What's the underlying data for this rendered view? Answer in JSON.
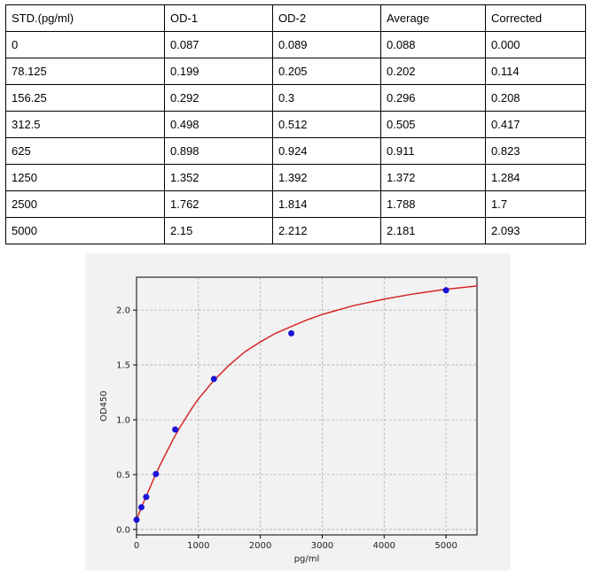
{
  "table": {
    "headers": [
      "STD.(pg/ml)",
      "OD-1",
      "OD-2",
      "Average",
      "Corrected"
    ],
    "rows": [
      [
        "0",
        "0.087",
        "0.089",
        "0.088",
        "0.000"
      ],
      [
        "78.125",
        "0.199",
        "0.205",
        "0.202",
        "0.114"
      ],
      [
        "156.25",
        "0.292",
        "0.3",
        "0.296",
        "0.208"
      ],
      [
        "312.5",
        "0.498",
        "0.512",
        "0.505",
        "0.417"
      ],
      [
        "625",
        "0.898",
        "0.924",
        "0.911",
        "0.823"
      ],
      [
        "1250",
        "1.352",
        "1.392",
        "1.372",
        "1.284"
      ],
      [
        "2500",
        "1.762",
        "1.814",
        "1.788",
        "1.7"
      ],
      [
        "5000",
        "2.15",
        "2.212",
        "2.181",
        "2.093"
      ]
    ]
  },
  "chart_data": {
    "type": "scatter",
    "title": "",
    "xlabel": "pg/ml",
    "ylabel": "OD450",
    "xlim": [
      0,
      5500
    ],
    "ylim": [
      -0.05,
      2.3
    ],
    "x_ticks": [
      0,
      1000,
      2000,
      3000,
      4000,
      5000
    ],
    "y_ticks": [
      0.0,
      0.5,
      1.0,
      1.5,
      2.0
    ],
    "x_tick_labels": [
      "0",
      "1000",
      "2000",
      "3000",
      "4000",
      "5000"
    ],
    "y_tick_labels": [
      "0.0",
      "0.5",
      "1.0",
      "1.5",
      "2.0"
    ],
    "grid": true,
    "points": {
      "x": [
        0,
        78.125,
        156.25,
        312.5,
        625,
        1250,
        2500,
        5000
      ],
      "y": [
        0.088,
        0.202,
        0.296,
        0.505,
        0.911,
        1.372,
        1.788,
        2.181
      ]
    },
    "fit_curve": {
      "x": [
        0,
        100,
        200,
        300,
        400,
        500,
        600,
        700,
        800,
        900,
        1000,
        1250,
        1500,
        1750,
        2000,
        2250,
        2500,
        2750,
        3000,
        3500,
        4000,
        4500,
        5000,
        5500
      ],
      "y": [
        0.09,
        0.23,
        0.36,
        0.49,
        0.61,
        0.72,
        0.83,
        0.93,
        1.02,
        1.11,
        1.19,
        1.36,
        1.5,
        1.62,
        1.71,
        1.79,
        1.85,
        1.91,
        1.96,
        2.04,
        2.1,
        2.15,
        2.19,
        2.22
      ]
    },
    "colors": {
      "points": "#1a12d6",
      "curve": "#d62728",
      "grid": "#b0b0b0"
    }
  }
}
